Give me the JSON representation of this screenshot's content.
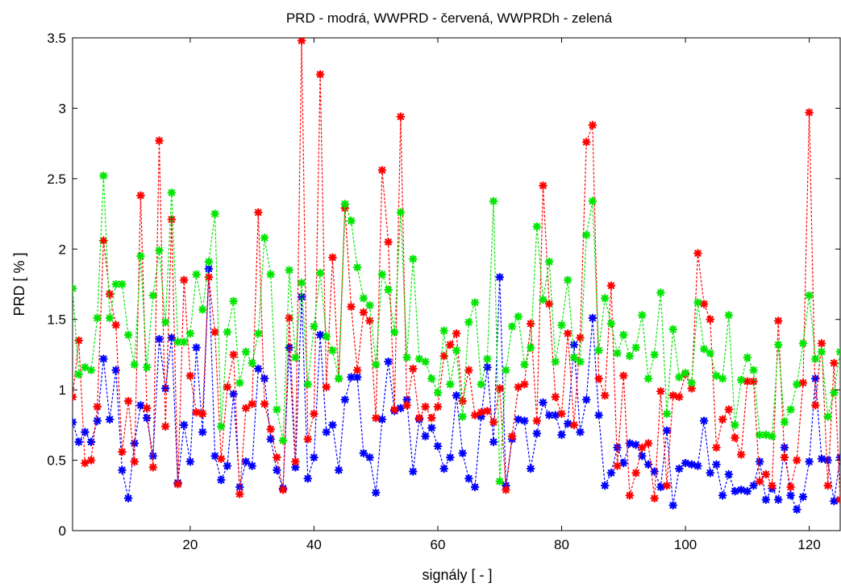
{
  "chart_data": {
    "type": "line",
    "title": "PRD - modrá, WWPRD - červená, WWPRDh - zelená",
    "xlabel": "signály [ - ]",
    "ylabel": "PRD [ % ]",
    "xlim": [
      1,
      125
    ],
    "ylim": [
      0,
      3.5
    ],
    "xticks": [
      20,
      40,
      60,
      80,
      100,
      120
    ],
    "yticks": [
      0,
      0.5,
      1,
      1.5,
      2,
      2.5,
      3,
      3.5
    ],
    "x_start": 1,
    "grid": false,
    "line_style": "dotted-with-star-markers",
    "series": [
      {
        "color": "#0000ff",
        "values": [
          0.77,
          0.63,
          0.7,
          0.63,
          0.78,
          1.22,
          0.79,
          1.14,
          0.43,
          0.23,
          0.62,
          0.89,
          0.8,
          0.53,
          1.36,
          1.01,
          1.37,
          0.34,
          0.75,
          0.49,
          1.3,
          0.7,
          1.86,
          0.53,
          0.36,
          0.46,
          0.97,
          0.31,
          0.49,
          0.46,
          1.15,
          1.08,
          0.65,
          0.43,
          0.3,
          1.3,
          0.45,
          1.66,
          0.37,
          0.52,
          1.39,
          0.7,
          0.75,
          0.43,
          0.93,
          1.09,
          1.09,
          0.55,
          0.52,
          0.27,
          0.79,
          1.2,
          0.85,
          0.87,
          0.93,
          0.42,
          0.79,
          0.67,
          0.73,
          0.6,
          0.44,
          0.52,
          0.96,
          0.55,
          0.37,
          0.31,
          0.81,
          1.16,
          0.63,
          1.8,
          0.32,
          0.65,
          0.79,
          0.78,
          0.44,
          0.69,
          0.91,
          0.82,
          0.82,
          0.68,
          0.76,
          1.32,
          0.7,
          0.93,
          1.51,
          0.82,
          0.32,
          0.41,
          0.59,
          0.48,
          0.62,
          0.61,
          0.53,
          0.47,
          0.42,
          0.31,
          0.71,
          0.18,
          0.44,
          0.48,
          0.47,
          0.46,
          0.78,
          0.41,
          0.47,
          0.25,
          0.4,
          0.28,
          0.29,
          0.28,
          0.32,
          0.49,
          0.22,
          0.3,
          0.22,
          0.59,
          0.25,
          0.15,
          0.24,
          0.49,
          1.08,
          0.51,
          0.5,
          0.21,
          0.52
        ]
      },
      {
        "color": "#ff0000",
        "values": [
          0.95,
          1.35,
          0.48,
          0.5,
          0.88,
          2.06,
          1.68,
          1.46,
          0.56,
          0.92,
          0.49,
          2.38,
          0.87,
          0.45,
          2.77,
          0.74,
          2.21,
          0.33,
          1.78,
          1.1,
          0.84,
          0.83,
          1.8,
          1.41,
          0.51,
          1.02,
          1.25,
          0.26,
          0.87,
          0.9,
          2.26,
          0.9,
          0.72,
          0.52,
          0.29,
          1.51,
          0.49,
          3.48,
          0.65,
          0.83,
          3.24,
          1.02,
          1.94,
          1.08,
          2.29,
          1.59,
          1.14,
          1.55,
          1.49,
          0.8,
          2.56,
          2.05,
          0.86,
          2.94,
          0.89,
          1.15,
          0.8,
          0.88,
          0.8,
          0.88,
          1.24,
          1.32,
          1.4,
          0.92,
          1.14,
          0.82,
          0.84,
          0.85,
          0.77,
          1.01,
          0.29,
          0.67,
          1.02,
          1.04,
          1.47,
          0.78,
          2.45,
          1.61,
          0.95,
          0.83,
          1.4,
          0.75,
          1.37,
          2.76,
          2.88,
          1.08,
          0.96,
          1.74,
          0.46,
          1.1,
          0.25,
          0.41,
          0.59,
          0.62,
          0.23,
          0.99,
          0.32,
          0.96,
          0.95,
          1.11,
          1.01,
          1.97,
          1.61,
          1.5,
          0.59,
          0.79,
          0.86,
          0.66,
          0.54,
          1.06,
          1.06,
          0.35,
          0.4,
          0.32,
          1.49,
          0.52,
          0.31,
          0.5,
          1.05,
          2.97,
          0.89,
          1.33,
          0.32,
          1.19,
          0.22
        ]
      },
      {
        "color": "#00e600",
        "values": [
          1.72,
          1.11,
          1.16,
          1.14,
          1.51,
          2.52,
          1.51,
          1.75,
          1.75,
          1.39,
          1.18,
          1.95,
          1.16,
          1.67,
          1.99,
          1.48,
          2.4,
          1.34,
          1.34,
          1.4,
          1.82,
          1.57,
          1.91,
          2.25,
          0.74,
          1.41,
          1.63,
          1.05,
          1.27,
          1.19,
          1.4,
          2.08,
          1.82,
          0.86,
          0.64,
          1.85,
          1.23,
          1.76,
          1.04,
          1.45,
          1.83,
          1.38,
          1.28,
          1.08,
          2.32,
          2.2,
          1.87,
          1.65,
          1.6,
          1.18,
          1.82,
          1.71,
          1.41,
          2.26,
          1.23,
          1.93,
          1.22,
          1.2,
          1.08,
          0.98,
          1.42,
          1.04,
          1.28,
          0.81,
          1.48,
          1.62,
          1.04,
          1.22,
          2.34,
          0.35,
          1.14,
          1.45,
          1.52,
          1.18,
          1.3,
          2.16,
          1.64,
          1.91,
          1.2,
          1.46,
          1.78,
          1.23,
          1.2,
          2.1,
          2.34,
          1.28,
          1.65,
          1.47,
          1.26,
          1.39,
          1.24,
          1.3,
          1.53,
          1.08,
          1.25,
          1.69,
          0.83,
          1.43,
          1.09,
          1.12,
          1.05,
          1.62,
          1.29,
          1.26,
          1.1,
          1.08,
          1.53,
          0.75,
          1.07,
          1.23,
          1.14,
          0.68,
          0.68,
          0.67,
          1.32,
          0.77,
          0.86,
          1.04,
          1.33,
          1.67,
          1.22,
          1.27,
          0.81,
          0.98,
          1.27
        ]
      }
    ]
  }
}
